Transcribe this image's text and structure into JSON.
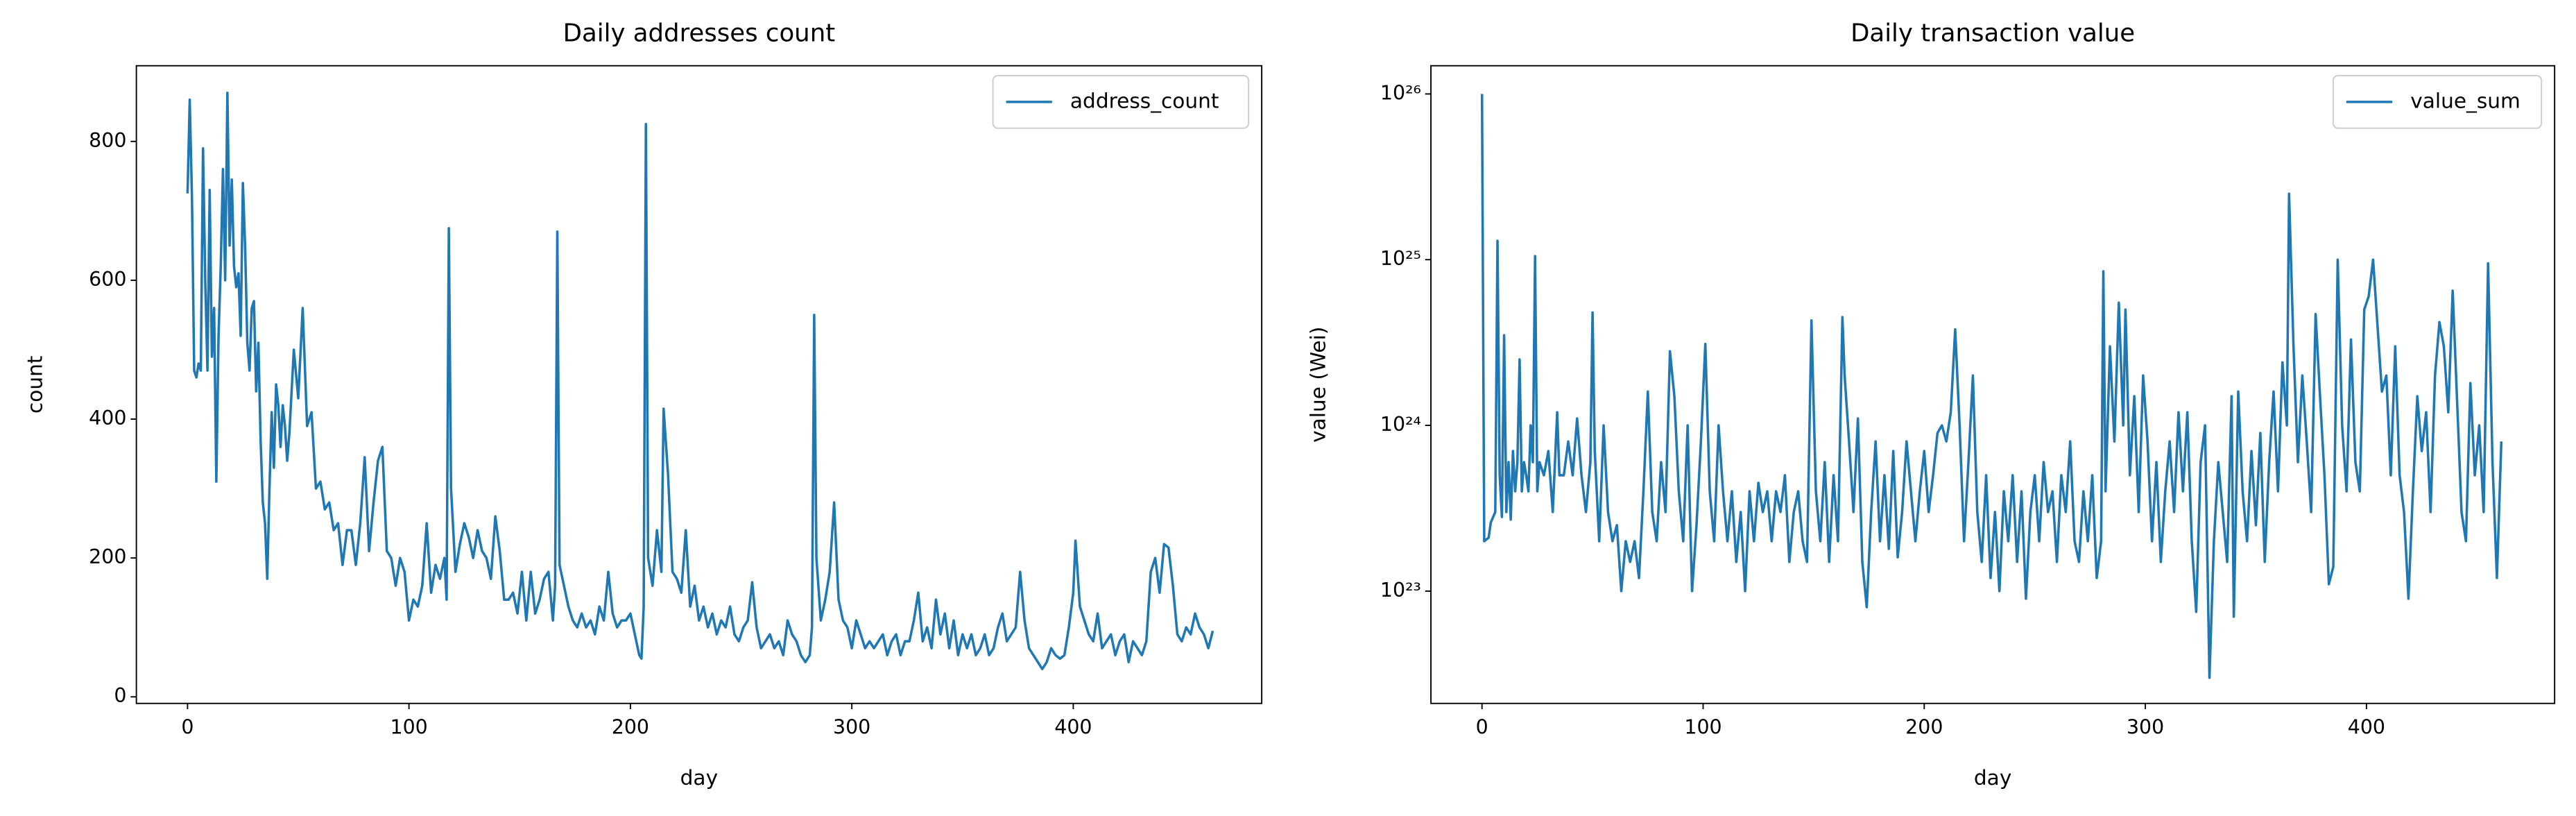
{
  "chart_data": [
    {
      "type": "line",
      "title": "Daily addresses count",
      "xlabel": "day",
      "ylabel": "count",
      "xlim": [
        -23.1,
        485.1
      ],
      "ylim": [
        -9.5,
        909
      ],
      "xticks": [
        0,
        100,
        200,
        300,
        400
      ],
      "yticks": [
        0,
        200,
        400,
        600,
        800
      ],
      "legend": "upper right",
      "yscale": "linear",
      "x": [
        0,
        1,
        2,
        3,
        4,
        5,
        6,
        7,
        8,
        9,
        10,
        11,
        12,
        13,
        14,
        15,
        16,
        17,
        18,
        19,
        20,
        21,
        22,
        23,
        24,
        25,
        26,
        27,
        28,
        29,
        30,
        31,
        32,
        33,
        34,
        35,
        36,
        37,
        38,
        39,
        40,
        41,
        42,
        43,
        44,
        45,
        46,
        48,
        50,
        52,
        54,
        56,
        58,
        60,
        62,
        64,
        66,
        68,
        70,
        72,
        74,
        76,
        78,
        80,
        82,
        84,
        86,
        88,
        90,
        92,
        94,
        96,
        98,
        100,
        102,
        104,
        106,
        108,
        110,
        112,
        114,
        116,
        117,
        118,
        119,
        121,
        123,
        125,
        127,
        129,
        131,
        133,
        135,
        137,
        139,
        141,
        143,
        145,
        147,
        149,
        151,
        153,
        155,
        157,
        159,
        161,
        163,
        165,
        166,
        167,
        168,
        170,
        172,
        174,
        176,
        178,
        180,
        182,
        184,
        186,
        188,
        190,
        192,
        194,
        196,
        198,
        200,
        202,
        204,
        205,
        206,
        207,
        208,
        210,
        212,
        214,
        215,
        217,
        219,
        221,
        223,
        225,
        227,
        229,
        231,
        233,
        235,
        237,
        239,
        241,
        243,
        245,
        247,
        249,
        251,
        253,
        255,
        257,
        259,
        261,
        263,
        265,
        267,
        269,
        271,
        273,
        275,
        277,
        279,
        281,
        282,
        283,
        284,
        286,
        288,
        290,
        292,
        294,
        296,
        298,
        300,
        302,
        304,
        306,
        308,
        310,
        312,
        314,
        316,
        318,
        320,
        322,
        324,
        326,
        328,
        330,
        332,
        334,
        336,
        338,
        340,
        342,
        344,
        346,
        348,
        350,
        352,
        354,
        356,
        358,
        360,
        362,
        364,
        366,
        368,
        370,
        372,
        374,
        376,
        378,
        380,
        382,
        384,
        386,
        388,
        390,
        392,
        394,
        396,
        398,
        400,
        401,
        403,
        405,
        407,
        409,
        411,
        413,
        415,
        417,
        419,
        421,
        423,
        425,
        427,
        429,
        431,
        433,
        435,
        437,
        439,
        441,
        443,
        445,
        447,
        449,
        451,
        453,
        455,
        457,
        459,
        461,
        463
      ],
      "series": [
        {
          "name": "address_count",
          "color": "#1f77b4",
          "values": [
            725,
            860,
            720,
            470,
            460,
            480,
            470,
            790,
            600,
            470,
            730,
            490,
            560,
            310,
            520,
            620,
            760,
            600,
            870,
            650,
            745,
            620,
            590,
            610,
            520,
            740,
            650,
            510,
            470,
            560,
            570,
            440,
            510,
            370,
            280,
            250,
            170,
            300,
            410,
            330,
            450,
            420,
            360,
            420,
            390,
            340,
            380,
            500,
            430,
            560,
            390,
            410,
            300,
            310,
            270,
            280,
            240,
            250,
            190,
            240,
            240,
            190,
            250,
            345,
            210,
            280,
            340,
            360,
            210,
            200,
            160,
            200,
            180,
            110,
            140,
            130,
            160,
            250,
            150,
            190,
            170,
            200,
            140,
            675,
            300,
            180,
            220,
            250,
            230,
            200,
            240,
            210,
            200,
            170,
            260,
            210,
            140,
            140,
            150,
            120,
            180,
            110,
            180,
            120,
            140,
            170,
            180,
            110,
            160,
            670,
            190,
            160,
            130,
            110,
            100,
            120,
            100,
            110,
            90,
            130,
            110,
            180,
            120,
            100,
            110,
            110,
            120,
            90,
            60,
            55,
            130,
            825,
            200,
            160,
            240,
            180,
            415,
            320,
            180,
            170,
            150,
            240,
            130,
            160,
            110,
            130,
            100,
            120,
            90,
            110,
            100,
            130,
            90,
            80,
            100,
            110,
            165,
            100,
            70,
            80,
            90,
            70,
            80,
            60,
            110,
            90,
            80,
            60,
            50,
            60,
            100,
            550,
            200,
            110,
            140,
            180,
            280,
            140,
            110,
            100,
            70,
            110,
            90,
            70,
            80,
            70,
            80,
            90,
            60,
            80,
            90,
            60,
            80,
            80,
            110,
            150,
            80,
            100,
            70,
            140,
            90,
            120,
            70,
            110,
            60,
            90,
            70,
            90,
            60,
            70,
            90,
            60,
            70,
            100,
            120,
            80,
            90,
            100,
            180,
            110,
            70,
            60,
            50,
            40,
            50,
            70,
            60,
            55,
            60,
            100,
            150,
            225,
            130,
            110,
            90,
            80,
            120,
            70,
            80,
            90,
            60,
            80,
            90,
            50,
            80,
            70,
            60,
            80,
            180,
            200,
            150,
            220,
            215,
            160,
            90,
            80,
            100,
            90,
            120,
            100,
            90,
            70,
            95
          ]
        }
      ]
    },
    {
      "type": "line",
      "title": "Daily transaction value",
      "xlabel": "day",
      "ylabel": "value (Wei)",
      "xlim": [
        -23.1,
        485.1
      ],
      "ylim": [
        2.1e+22,
        1.48e+26
      ],
      "xticks": [
        0,
        100,
        200,
        300,
        400
      ],
      "yticks": [
        {
          "value": 1e+23,
          "label": "10²³"
        },
        {
          "value": 1e+24,
          "label": "10²⁴"
        },
        {
          "value": 1e+25,
          "label": "10²⁵"
        },
        {
          "value": 1e+26,
          "label": "10²⁶"
        }
      ],
      "legend": "upper right",
      "yscale": "log",
      "x": [
        0,
        1,
        3,
        4,
        6,
        7,
        8,
        9,
        10,
        11,
        12,
        13,
        14,
        15,
        16,
        17,
        18,
        19,
        20,
        21,
        22,
        23,
        24,
        25,
        26,
        28,
        30,
        32,
        34,
        35,
        37,
        39,
        41,
        43,
        45,
        47,
        49,
        50,
        51,
        53,
        55,
        57,
        59,
        61,
        63,
        65,
        67,
        69,
        71,
        73,
        75,
        77,
        79,
        81,
        83,
        85,
        87,
        89,
        91,
        93,
        95,
        97,
        99,
        101,
        103,
        105,
        107,
        109,
        111,
        113,
        115,
        117,
        119,
        121,
        123,
        125,
        127,
        129,
        131,
        133,
        135,
        137,
        139,
        141,
        143,
        145,
        147,
        149,
        151,
        153,
        155,
        157,
        159,
        161,
        163,
        164,
        166,
        168,
        170,
        172,
        174,
        176,
        178,
        180,
        182,
        184,
        186,
        188,
        190,
        192,
        194,
        196,
        198,
        200,
        202,
        204,
        206,
        208,
        210,
        212,
        214,
        216,
        218,
        220,
        222,
        224,
        226,
        228,
        230,
        232,
        234,
        236,
        238,
        240,
        242,
        244,
        246,
        248,
        250,
        252,
        254,
        256,
        258,
        260,
        262,
        264,
        266,
        268,
        270,
        272,
        274,
        276,
        278,
        280,
        281,
        282,
        284,
        286,
        288,
        290,
        291,
        293,
        295,
        297,
        299,
        301,
        303,
        305,
        307,
        309,
        311,
        313,
        315,
        317,
        319,
        321,
        323,
        325,
        327,
        329,
        331,
        333,
        335,
        337,
        339,
        340,
        342,
        344,
        346,
        348,
        350,
        352,
        354,
        356,
        358,
        360,
        362,
        364,
        365,
        367,
        369,
        371,
        373,
        375,
        377,
        379,
        381,
        383,
        385,
        387,
        389,
        391,
        393,
        395,
        397,
        399,
        401,
        403,
        405,
        407,
        409,
        411,
        413,
        415,
        417,
        419,
        421,
        423,
        425,
        427,
        429,
        431,
        433,
        435,
        437,
        439,
        441,
        443,
        445,
        447,
        449,
        451,
        453,
        455,
        457,
        459,
        461
      ],
      "series": [
        {
          "name": "value_sum",
          "color": "#1f77b4",
          "values": [
            1e+26,
            2e+23,
            2.1e+23,
            2.6e+23,
            3e+23,
            1.3e+25,
            5e+23,
            2.8e+23,
            3.5e+24,
            3e+23,
            6e+23,
            2.7e+23,
            7e+23,
            4e+23,
            6e+23,
            2.5e+24,
            4e+23,
            6e+23,
            5e+23,
            4e+23,
            1e+24,
            6e+23,
            1.05e+25,
            4e+23,
            6e+23,
            5e+23,
            7e+23,
            3e+23,
            1.2e+24,
            5e+23,
            5e+23,
            8e+23,
            5e+23,
            1.1e+24,
            5e+23,
            3e+23,
            6e+23,
            4.8e+24,
            7e+23,
            2e+23,
            1e+24,
            3e+23,
            2e+23,
            2.5e+23,
            1e+23,
            2e+23,
            1.5e+23,
            2e+23,
            1.2e+23,
            4e+23,
            1.6e+24,
            3e+23,
            2e+23,
            6e+23,
            3e+23,
            2.8e+24,
            1.5e+24,
            4e+23,
            2e+23,
            1e+24,
            1e+23,
            2.5e+23,
            8e+23,
            3.1e+24,
            4e+23,
            2e+23,
            1e+24,
            4e+23,
            2e+23,
            4e+23,
            1.5e+23,
            3e+23,
            1e+23,
            4e+23,
            2e+23,
            4.5e+23,
            3e+23,
            4e+23,
            2e+23,
            4e+23,
            3e+23,
            5e+23,
            1.5e+23,
            3e+23,
            4e+23,
            2e+23,
            1.5e+23,
            4.3e+24,
            4e+23,
            2e+23,
            6e+23,
            1.5e+23,
            5e+23,
            2e+23,
            4.5e+24,
            2e+24,
            8e+23,
            3e+23,
            1.1e+24,
            1.5e+23,
            8e+22,
            3e+23,
            8e+23,
            2e+23,
            5e+23,
            1.8e+23,
            7e+23,
            1.6e+23,
            3e+23,
            8e+23,
            4e+23,
            2e+23,
            4e+23,
            7e+23,
            3e+23,
            5e+23,
            9e+23,
            1e+24,
            8e+23,
            1.2e+24,
            3.8e+24,
            1e+24,
            2e+23,
            6e+23,
            2e+24,
            3e+23,
            1.5e+23,
            5e+23,
            1.2e+23,
            3e+23,
            1e+23,
            4e+23,
            2e+23,
            5e+23,
            1.5e+23,
            4e+23,
            9e+22,
            3e+23,
            5e+23,
            2e+23,
            6e+23,
            3e+23,
            4e+23,
            1.5e+23,
            5e+23,
            3e+23,
            8e+23,
            2e+23,
            1.5e+23,
            4e+23,
            2e+23,
            5e+23,
            1.2e+23,
            2e+23,
            8.5e+24,
            4e+23,
            3e+24,
            8e+23,
            5.5e+24,
            1e+24,
            5e+24,
            5e+23,
            1.5e+24,
            3e+23,
            2e+24,
            8e+23,
            2e+23,
            6e+23,
            1.5e+23,
            4e+23,
            8e+23,
            3e+23,
            1.2e+24,
            4e+23,
            1.2e+24,
            2e+23,
            7.5e+22,
            6e+23,
            1e+24,
            3e+22,
            2e+23,
            6e+23,
            3e+23,
            1.5e+23,
            1.5e+24,
            7e+22,
            1.6e+24,
            4e+23,
            2e+23,
            7e+23,
            2.5e+23,
            9e+23,
            1.5e+23,
            6e+23,
            1.6e+24,
            4e+23,
            2.4e+24,
            1e+24,
            2.5e+25,
            3e+24,
            6e+23,
            2e+24,
            8e+23,
            3e+23,
            4.7e+24,
            1.5e+24,
            5e+23,
            1.1e+23,
            1.4e+23,
            1e+25,
            1e+24,
            4e+23,
            3.3e+24,
            6e+23,
            4e+23,
            5e+24,
            6e+24,
            1e+25,
            4e+24,
            1.6e+24,
            2e+24,
            5e+23,
            3e+24,
            5e+23,
            3e+23,
            9e+22,
            4e+23,
            1.5e+24,
            7e+23,
            1.2e+24,
            3e+23,
            2e+24,
            4.2e+24,
            3e+24,
            1.2e+24,
            6.5e+24,
            1.4e+24,
            3e+23,
            2e+23,
            1.8e+24,
            5e+23,
            1e+24,
            3e+23,
            9.5e+24,
            6e+23,
            1.2e+23,
            8e+23
          ]
        }
      ]
    }
  ]
}
